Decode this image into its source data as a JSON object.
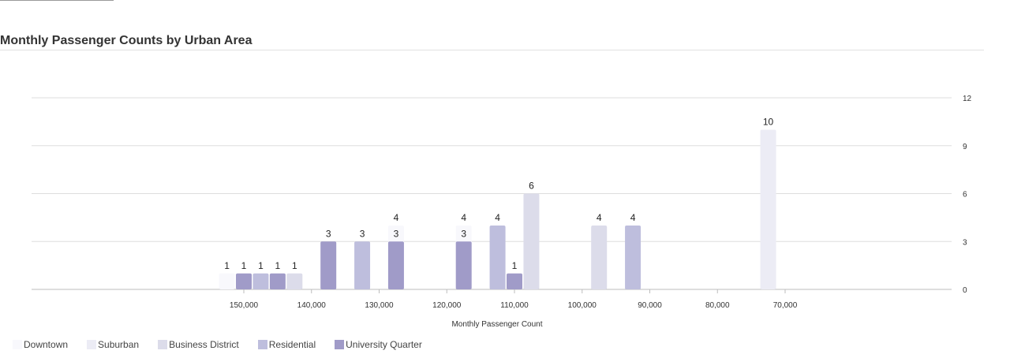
{
  "chart_data": {
    "type": "bar",
    "title": "Monthly Passenger Counts by Urban Area",
    "xlabel": "Monthly Passenger Count",
    "ylabel": "",
    "x_ticks": [
      150000,
      140000,
      130000,
      120000,
      110000,
      100000,
      90000,
      80000,
      70000
    ],
    "x_tick_labels": [
      "150,000",
      "140,000",
      "130,000",
      "120,000",
      "110,000",
      "100,000",
      "90,000",
      "80,000",
      "70,000"
    ],
    "x_reversed": true,
    "y_ticks": [
      0,
      3,
      6,
      9,
      12
    ],
    "ylim": [
      0,
      12
    ],
    "grid": true,
    "legend_position": "bottom-left",
    "series": [
      {
        "name": "Downtown",
        "color": "#f8f8fc",
        "points": [
          {
            "x": 152500,
            "y": 1
          },
          {
            "x": 127500,
            "y": 4
          },
          {
            "x": 117500,
            "y": 4
          }
        ]
      },
      {
        "name": "Suburban",
        "color": "#ececf5",
        "points": [
          {
            "x": 72500,
            "y": 10
          }
        ]
      },
      {
        "name": "Business District",
        "color": "#dcdcea",
        "points": [
          {
            "x": 142500,
            "y": 1
          },
          {
            "x": 107500,
            "y": 6
          },
          {
            "x": 97500,
            "y": 4
          }
        ]
      },
      {
        "name": "Residential",
        "color": "#bebedd",
        "points": [
          {
            "x": 147500,
            "y": 1
          },
          {
            "x": 132500,
            "y": 3
          },
          {
            "x": 112500,
            "y": 4
          },
          {
            "x": 92500,
            "y": 4
          }
        ]
      },
      {
        "name": "University Quarter",
        "color": "#a09bc8",
        "points": [
          {
            "x": 150000,
            "y": 1
          },
          {
            "x": 145000,
            "y": 1
          },
          {
            "x": 137500,
            "y": 3
          },
          {
            "x": 127500,
            "y": 3
          },
          {
            "x": 117500,
            "y": 3
          },
          {
            "x": 110000,
            "y": 1
          }
        ]
      }
    ]
  }
}
